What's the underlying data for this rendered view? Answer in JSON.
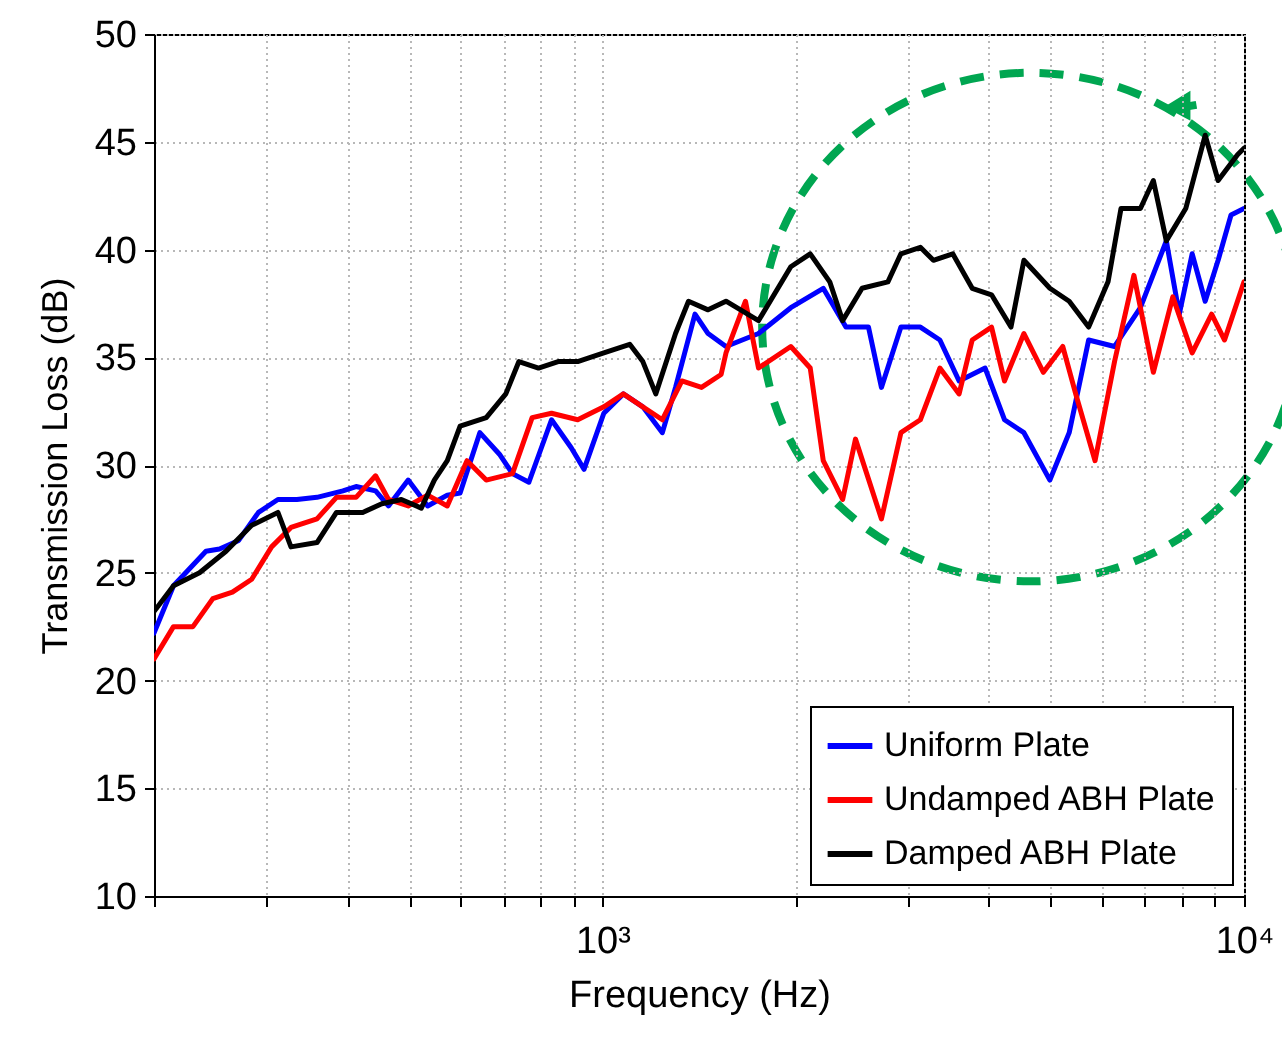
{
  "chart_data": {
    "type": "line",
    "xlabel": "Frequency (Hz)",
    "ylabel": "Transmission Loss (dB)",
    "log": "x",
    "grid": true,
    "legend": "bottom right",
    "xlim": [
      200,
      10000
    ],
    "ylim": [
      10,
      50
    ],
    "xticks": [
      {
        "value": 200,
        "label": null
      },
      {
        "value": 300,
        "label": null
      },
      {
        "value": 400,
        "label": null
      },
      {
        "value": 500,
        "label": null
      },
      {
        "value": 600,
        "label": null
      },
      {
        "value": 700,
        "label": null
      },
      {
        "value": 800,
        "label": null
      },
      {
        "value": 900,
        "label": null
      },
      {
        "value": 1000,
        "label": "10³"
      },
      {
        "value": 2000,
        "label": null
      },
      {
        "value": 3000,
        "label": null
      },
      {
        "value": 4000,
        "label": null
      },
      {
        "value": 5000,
        "label": null
      },
      {
        "value": 6000,
        "label": null
      },
      {
        "value": 7000,
        "label": null
      },
      {
        "value": 8000,
        "label": null
      },
      {
        "value": 9000,
        "label": null
      },
      {
        "value": 10000,
        "label": "10⁴"
      }
    ],
    "yticks": [
      10,
      15,
      20,
      25,
      30,
      35,
      40,
      45,
      50
    ],
    "series": [
      {
        "name": "Uniform Plate",
        "color": "#0000ff",
        "x": [
          200,
          214.5,
          241,
          253,
          271,
          291,
          312,
          334,
          359,
          394,
          413,
          443,
          464,
          498,
          534,
          573,
          600,
          644,
          691,
          724,
          768,
          833,
          894,
          936,
          1005,
          1078,
          1156,
          1240,
          1300,
          1394,
          1461,
          1558,
          1751,
          1966,
          2209,
          2396,
          2598,
          2722,
          2919,
          3130,
          3357,
          3597,
          3949,
          4233,
          4539,
          4982,
          5340,
          5726,
          6284,
          6895,
          7567,
          7927,
          8303,
          8699,
          9113,
          9545,
          10000
        ],
        "values": [
          22.2,
          24.4,
          26,
          26.1,
          26.5,
          27.8,
          28.4,
          28.4,
          28.5,
          28.8,
          29,
          28.8,
          28.1,
          29.3,
          28.1,
          28.6,
          28.7,
          31.5,
          30.5,
          29.6,
          29.2,
          32.1,
          30.8,
          29.8,
          32.4,
          33.3,
          32.7,
          31.5,
          33.6,
          37,
          36.1,
          35.5,
          36.1,
          37.3,
          38.2,
          36.4,
          36.4,
          33.6,
          36.4,
          36.4,
          35.8,
          33.9,
          34.5,
          32.1,
          31.5,
          29.3,
          31.5,
          35.8,
          35.5,
          37.3,
          40.4,
          37,
          39.8,
          37.6,
          39.5,
          41.6,
          41.9
        ]
      },
      {
        "name": "Undamped ABH Plate",
        "color": "#ff0000",
        "x": [
          200,
          214.5,
          230,
          247,
          265,
          284,
          305,
          327,
          359,
          385,
          413,
          443,
          464,
          498,
          534,
          573,
          615,
          659,
          724,
          777,
          833,
          915,
          1005,
          1078,
          1156,
          1240,
          1330,
          1427,
          1531,
          1558,
          1671,
          1751,
          1966,
          2108,
          2209,
          2368,
          2480,
          2722,
          2919,
          3130,
          3357,
          3597,
          3770,
          4041,
          4233,
          4539,
          4867,
          5218,
          5466,
          5859,
          6284,
          6736,
          7223,
          7745,
          8303,
          8904,
          9326,
          10000
        ],
        "values": [
          21,
          22.5,
          22.5,
          23.8,
          24.1,
          24.7,
          26.2,
          27.1,
          27.5,
          28.5,
          28.5,
          29.5,
          28.4,
          28.1,
          28.6,
          28.1,
          30.2,
          29.3,
          29.6,
          32.2,
          32.4,
          32.1,
          32.7,
          33.3,
          32.7,
          32.1,
          33.9,
          33.6,
          34.2,
          35.2,
          37.6,
          34.5,
          35.5,
          34.5,
          30.2,
          28.4,
          31.2,
          27.5,
          31.5,
          32.1,
          34.5,
          33.3,
          35.8,
          36.4,
          33.9,
          36.1,
          34.3,
          35.5,
          33.3,
          30.2,
          34.8,
          38.8,
          34.3,
          37.8,
          35.2,
          37,
          35.8,
          38.5
        ]
      },
      {
        "name": "Damped ABH Plate",
        "color": "#000000",
        "x": [
          200,
          214.5,
          235.5,
          259,
          284,
          312,
          327,
          359,
          385,
          423,
          453,
          486,
          522,
          547,
          573,
          600,
          659,
          707,
          741,
          795,
          853,
          915,
          1005,
          1103,
          1156,
          1211,
          1300,
          1362,
          1461,
          1558,
          1751,
          1966,
          2108,
          2261,
          2368,
          2539,
          2786,
          2919,
          3130,
          3280,
          3516,
          3770,
          4041,
          4333,
          4539,
          4982,
          5340,
          5726,
          6139,
          6431,
          6895,
          7223,
          7567,
          8113,
          8699,
          9113,
          9770,
          10000
        ],
        "values": [
          23.2,
          24.4,
          25,
          26,
          27.2,
          27.8,
          26.2,
          26.4,
          27.8,
          27.8,
          28.2,
          28.4,
          28,
          29.3,
          30.2,
          31.8,
          32.2,
          33.3,
          34.8,
          34.5,
          34.8,
          34.8,
          35.2,
          35.6,
          34.8,
          33.3,
          36.1,
          37.6,
          37.2,
          37.6,
          36.7,
          39.2,
          39.8,
          38.5,
          36.7,
          38.2,
          38.5,
          39.8,
          40.1,
          39.5,
          39.8,
          38.2,
          37.9,
          36.4,
          39.5,
          38.2,
          37.6,
          36.4,
          38.5,
          41.9,
          41.9,
          43.2,
          40.4,
          41.9,
          45.3,
          43.2,
          44.4,
          44.7
        ]
      }
    ]
  }
}
